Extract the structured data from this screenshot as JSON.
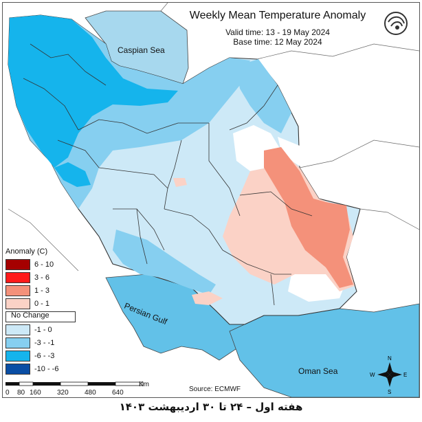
{
  "title": "Weekly Mean Temperature Anomaly",
  "valid_time": "Valid time: 13 - 19 May 2024",
  "base_time": "Base time: 12 May 2024",
  "legend": {
    "title": "Anomaly (C)",
    "items": [
      {
        "label": "6 - 10",
        "color": "#a50000"
      },
      {
        "label": "3 - 6",
        "color": "#ff1a1a"
      },
      {
        "label": "1 - 3",
        "color": "#f4917a"
      },
      {
        "label": "0 - 1",
        "color": "#fbd2c6"
      },
      {
        "label": "No Change",
        "color": "#ffffff"
      },
      {
        "label": "-1 - 0",
        "color": "#cde9f7"
      },
      {
        "label": "-3 - -1",
        "color": "#86cff0"
      },
      {
        "label": "-6 - -3",
        "color": "#15b4ec"
      },
      {
        "label": "-10 - -6",
        "color": "#0a4ea4"
      }
    ]
  },
  "labels": {
    "caspian": "Caspian Sea",
    "gulf": "Persian Gulf",
    "oman": "Oman Sea"
  },
  "scale": {
    "unit": "Km",
    "ticks": [
      "0",
      "80",
      "160",
      "320",
      "480",
      "640"
    ]
  },
  "source": "Source: ECMWF",
  "footer": "هفته اول – ۲۴ تا ۳۰ اردیبهشت ۱۴۰۳",
  "compass": {
    "n": "N",
    "s": "S",
    "e": "E",
    "w": "W"
  }
}
